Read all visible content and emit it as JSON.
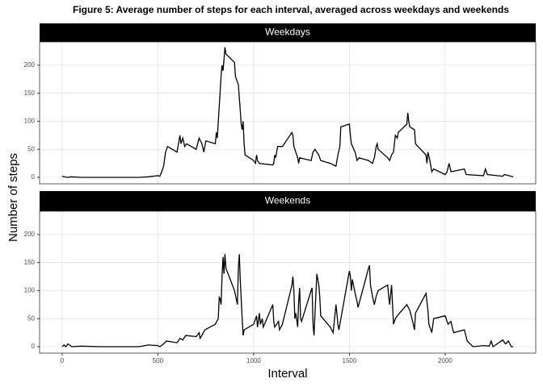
{
  "chart_data": [
    {
      "type": "line",
      "title": "Figure 5: Average number of steps for each interval, averaged across weekdays and weekends",
      "y_label": "Number of steps",
      "panel_title": "Weekdays",
      "x": [
        0,
        25,
        50,
        100,
        150,
        200,
        300,
        400,
        450,
        500,
        510,
        520,
        530,
        540,
        550,
        600,
        610,
        615,
        620,
        630,
        640,
        650,
        700,
        715,
        730,
        740,
        750,
        800,
        805,
        810,
        830,
        835,
        840,
        845,
        850,
        855,
        900,
        905,
        910,
        915,
        920,
        930,
        935,
        940,
        945,
        950,
        955,
        1000,
        1010,
        1015,
        1020,
        1030,
        1100,
        1105,
        1110,
        1115,
        1120,
        1125,
        1130,
        1150,
        1200,
        1205,
        1210,
        1230,
        1235,
        1240,
        1300,
        1310,
        1320,
        1330,
        1340,
        1350,
        1400,
        1430,
        1440,
        1450,
        1455,
        1500,
        1505,
        1510,
        1530,
        1540,
        1550,
        1600,
        1620,
        1630,
        1640,
        1645,
        1650,
        1700,
        1710,
        1720,
        1730,
        1735,
        1740,
        1750,
        1755,
        1800,
        1805,
        1810,
        1815,
        1840,
        1845,
        1900,
        1905,
        1910,
        1920,
        1930,
        1940,
        2000,
        2010,
        2020,
        2030,
        2100,
        2110,
        2200,
        2210,
        2220,
        2300,
        2310,
        2355
      ],
      "values": [
        2,
        0,
        1,
        0,
        0,
        0,
        0,
        0,
        1,
        3,
        2,
        10,
        20,
        45,
        55,
        45,
        65,
        75,
        60,
        70,
        55,
        60,
        50,
        70,
        60,
        45,
        65,
        60,
        80,
        70,
        180,
        200,
        190,
        210,
        232,
        220,
        205,
        180,
        175,
        170,
        165,
        120,
        95,
        85,
        100,
        60,
        40,
        30,
        25,
        40,
        30,
        25,
        22,
        25,
        40,
        35,
        45,
        55,
        55,
        55,
        80,
        75,
        55,
        35,
        25,
        35,
        30,
        45,
        50,
        45,
        40,
        30,
        25,
        20,
        40,
        55,
        90,
        95,
        75,
        60,
        45,
        30,
        35,
        30,
        25,
        35,
        55,
        60,
        50,
        35,
        30,
        40,
        45,
        60,
        75,
        70,
        80,
        95,
        115,
        100,
        90,
        85,
        60,
        40,
        25,
        45,
        30,
        10,
        15,
        5,
        10,
        25,
        10,
        15,
        5,
        3,
        15,
        5,
        2,
        5,
        1
      ],
      "color": "#000000",
      "xlim": [
        -117.75,
        2472.75
      ],
      "ylim": [
        -11.5,
        241.5
      ],
      "xticks": [
        0,
        500,
        1000,
        1500,
        2000
      ],
      "yticks": [
        0,
        50,
        100,
        150,
        200
      ],
      "grid": true
    },
    {
      "type": "line",
      "x_label": "Interval",
      "panel_title": "Weekends",
      "x": [
        0,
        10,
        20,
        30,
        50,
        100,
        200,
        300,
        400,
        450,
        500,
        510,
        530,
        545,
        600,
        615,
        630,
        645,
        700,
        715,
        720,
        730,
        745,
        800,
        815,
        820,
        825,
        830,
        835,
        840,
        845,
        850,
        855,
        900,
        915,
        920,
        925,
        930,
        940,
        945,
        950,
        1000,
        1015,
        1020,
        1030,
        1035,
        1045,
        1050,
        1100,
        1105,
        1110,
        1130,
        1135,
        1150,
        1200,
        1205,
        1210,
        1215,
        1220,
        1230,
        1235,
        1240,
        1245,
        1250,
        1300,
        1305,
        1310,
        1315,
        1330,
        1340,
        1345,
        1350,
        1400,
        1415,
        1430,
        1440,
        1445,
        1500,
        1505,
        1510,
        1515,
        1530,
        1540,
        1545,
        1600,
        1605,
        1610,
        1620,
        1630,
        1640,
        1650,
        1700,
        1705,
        1710,
        1720,
        1730,
        1740,
        1750,
        1800,
        1815,
        1830,
        1840,
        1845,
        1900,
        1910,
        1915,
        1930,
        1940,
        2000,
        2015,
        2030,
        2040,
        2045,
        2100,
        2115,
        2130,
        2145,
        2200,
        2230,
        2240,
        2250,
        2300,
        2315,
        2330,
        2345,
        2355
      ],
      "values": [
        0,
        3,
        0,
        5,
        0,
        1,
        0,
        0,
        0,
        3,
        2,
        0,
        5,
        10,
        7,
        15,
        12,
        20,
        18,
        25,
        15,
        20,
        30,
        40,
        50,
        88,
        85,
        75,
        125,
        160,
        130,
        165,
        140,
        100,
        75,
        140,
        165,
        120,
        50,
        20,
        30,
        40,
        55,
        35,
        60,
        40,
        50,
        35,
        75,
        45,
        35,
        45,
        30,
        40,
        110,
        125,
        100,
        50,
        60,
        35,
        80,
        105,
        50,
        45,
        100,
        105,
        40,
        20,
        130,
        110,
        90,
        55,
        35,
        25,
        75,
        40,
        30,
        135,
        125,
        100,
        120,
        95,
        80,
        70,
        140,
        145,
        110,
        90,
        75,
        90,
        100,
        110,
        90,
        75,
        110,
        40,
        50,
        55,
        75,
        65,
        45,
        30,
        60,
        95,
        65,
        40,
        25,
        50,
        55,
        40,
        45,
        30,
        25,
        30,
        10,
        5,
        0,
        2,
        1,
        10,
        0,
        12,
        5,
        10,
        0,
        0
      ],
      "color": "#000000",
      "xlim": [
        -117.75,
        2472.75
      ],
      "ylim": [
        -11.5,
        241.5
      ],
      "xticks": [
        0,
        500,
        1000,
        1500,
        2000
      ],
      "yticks": [
        0,
        50,
        100,
        150,
        200
      ],
      "grid": true
    }
  ]
}
